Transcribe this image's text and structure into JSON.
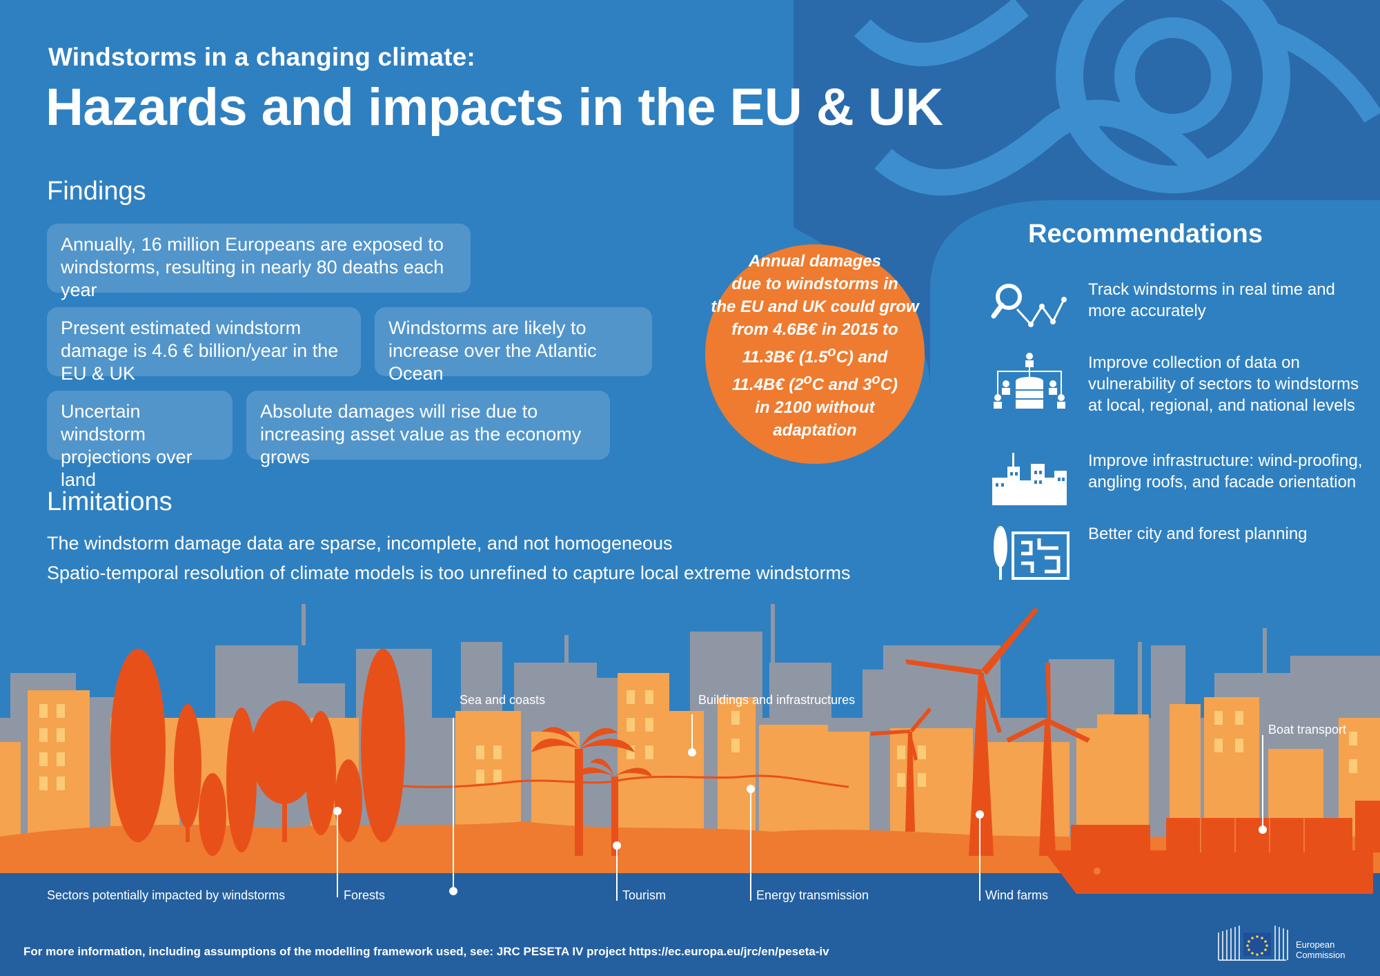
{
  "header": {
    "subtitle": "Windstorms in a changing climate:",
    "title": "Hazards and impacts in the EU & UK"
  },
  "findings": {
    "heading": "Findings",
    "items": [
      "Annually, 16 million Europeans are exposed to windstorms, resulting in nearly 80 deaths each year",
      "Present estimated windstorm damage is 4.6 € billion/year in the EU & UK",
      "Windstorms are likely to increase over the Atlantic Ocean",
      "Uncertain windstorm projections over land",
      "Absolute damages will rise due to increasing asset value as the economy grows"
    ]
  },
  "limitations": {
    "heading": "Limitations",
    "items": [
      "The windstorm damage data are sparse, incomplete, and not homogeneous",
      "Spatio-temporal resolution of climate models is too unrefined to capture local extreme windstorms"
    ]
  },
  "highlight": {
    "text": "Annual damages due to windstorms in the EU and UK could grow from 4.6B€ in 2015 to 11.3B€ (1.5°C) and 11.4B€ (2°C and 3°C) in 2100 without adaptation",
    "color": "#ee7b2f"
  },
  "recommendations": {
    "heading": "Recommendations",
    "items": [
      {
        "icon": "tracking-magnifier-icon",
        "text": "Track windstorms in real time and more accurately"
      },
      {
        "icon": "data-collection-icon",
        "text": "Improve collection of data on vulnerability of sectors to windstorms at local, regional, and national levels"
      },
      {
        "icon": "city-buildings-icon",
        "text": "Improve infrastructure: wind-proofing, angling roofs, and facade orientation"
      },
      {
        "icon": "city-forest-planning-icon",
        "text": "Better city and forest planning"
      }
    ]
  },
  "sectors": {
    "intro": "Sectors potentially impacted by windstorms",
    "forests": "Forests",
    "sea": "Sea and coasts",
    "tourism": "Tourism",
    "buildings": "Buildings and infrastructures",
    "energy": "Energy transmission",
    "wind": "Wind farms",
    "boat": "Boat transport"
  },
  "footer": {
    "text": "For more information, including assumptions of the modelling framework used, see: JRC PESETA IV project https://ec.europa.eu/jrc/en/peseta-iv"
  },
  "logo": {
    "line1": "European",
    "line2": "Commission"
  },
  "colors": {
    "background": "#2f80c1",
    "dark_blue": "#2460a0",
    "orange": "#ee7b2f",
    "dark_orange": "#e8501a",
    "grey_building": "#8f97a5"
  }
}
